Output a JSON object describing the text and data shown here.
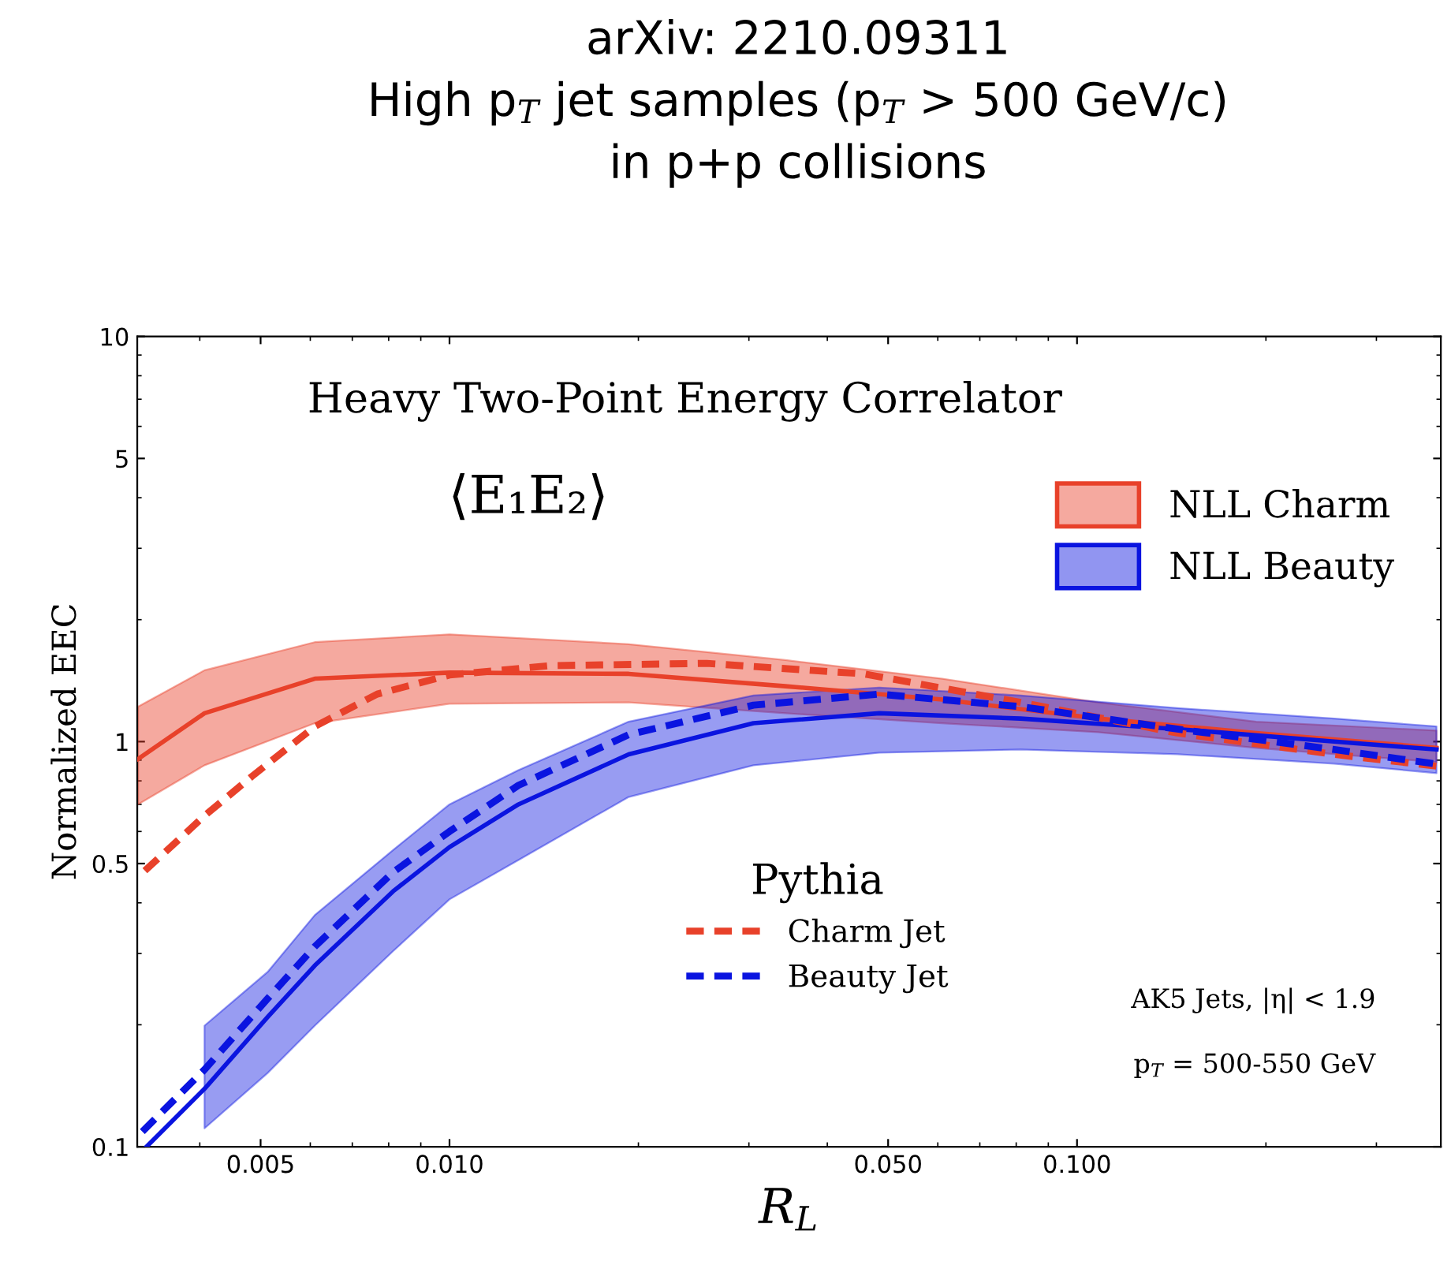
{
  "chart_data": {
    "type": "line",
    "title": "arXiv: 2210.09311\nHigh p$_{T}$ jet samples (p$_{T}$ > 500 GeV/c)\nin p+p collisions",
    "xlabel": "R$_{L}$",
    "ylabel": "Normalized EEC",
    "legend_title": "Pythia",
    "annotations": [
      "Heavy Two-Point Energy Correlator",
      "⟨E₁E₂⟩",
      "AK5 Jets, |η| < 1.9",
      "p$_{T}$ = 500-550 GeV"
    ],
    "log": "xy",
    "xlim": [
      0.00318,
      0.38
    ],
    "ylim": [
      0.1,
      10
    ],
    "xticks": [
      {
        "value": 0.005,
        "label": "0.005"
      },
      {
        "value": 0.01,
        "label": "0.010"
      },
      {
        "value": 0.05,
        "label": "0.050"
      },
      {
        "value": 0.1,
        "label": "0.100"
      }
    ],
    "yticks": [
      0.1,
      0.5,
      1,
      5,
      10
    ],
    "grid": false,
    "legend": "top right",
    "series": [
      {
        "name": "NLL Charm",
        "color": "#e8412a",
        "line_style": "solid",
        "x": [
          0.00319,
          0.00407,
          0.0061,
          0.01,
          0.0193,
          0.0343,
          0.061,
          0.108,
          0.193,
          0.374
        ],
        "values": [
          0.906,
          1.175,
          1.43,
          1.48,
          1.47,
          1.37,
          1.27,
          1.14,
          1.05,
          0.965
        ],
        "lower": [
          0.7,
          0.874,
          1.11,
          1.24,
          1.25,
          1.175,
          1.11,
          1.055,
          0.965,
          0.89
        ],
        "upper": [
          1.22,
          1.5,
          1.76,
          1.84,
          1.74,
          1.59,
          1.43,
          1.25,
          1.12,
          1.065
        ]
      },
      {
        "name": "NLL Beauty",
        "color": "#0a14e0",
        "line_style": "solid",
        "x": [
          0.00329,
          0.00407,
          0.00513,
          0.0061,
          0.00813,
          0.01,
          0.01288,
          0.0193,
          0.0305,
          0.0484,
          0.0813,
          0.1445,
          0.257,
          0.374
        ],
        "values": [
          0.1,
          0.139,
          0.209,
          0.28,
          0.427,
          0.549,
          0.7,
          0.93,
          1.11,
          1.175,
          1.14,
          1.074,
          1.0,
          0.956
        ],
        "lower": [
          null,
          0.111,
          0.152,
          0.199,
          0.304,
          0.408,
          0.51,
          0.73,
          0.874,
          0.939,
          0.956,
          0.931,
          0.882,
          0.836
        ],
        "upper": [
          null,
          0.199,
          0.27,
          0.373,
          0.54,
          0.7,
          0.85,
          1.12,
          1.3,
          1.36,
          1.3,
          1.21,
          1.14,
          1.09
        ]
      },
      {
        "name": "Charm Jet",
        "color": "#e8412a",
        "line_style": "dashed",
        "x": [
          0.00327,
          0.00407,
          0.00484,
          0.0061,
          0.00767,
          0.01,
          0.01445,
          0.0257,
          0.0457,
          0.0813,
          0.1445,
          0.257,
          0.374
        ],
        "values": [
          0.48,
          0.656,
          0.82,
          1.09,
          1.31,
          1.46,
          1.54,
          1.56,
          1.47,
          1.25,
          1.05,
          0.93,
          0.87
        ]
      },
      {
        "name": "Beauty Jet",
        "color": "#0a14e0",
        "line_style": "dashed",
        "x": [
          0.00324,
          0.00407,
          0.00513,
          0.0061,
          0.00813,
          0.01,
          0.01288,
          0.0193,
          0.0305,
          0.0484,
          0.0813,
          0.1445,
          0.257,
          0.374
        ],
        "values": [
          0.109,
          0.155,
          0.232,
          0.312,
          0.476,
          0.6,
          0.78,
          1.04,
          1.23,
          1.31,
          1.22,
          1.074,
          0.956,
          0.88
        ]
      }
    ]
  }
}
